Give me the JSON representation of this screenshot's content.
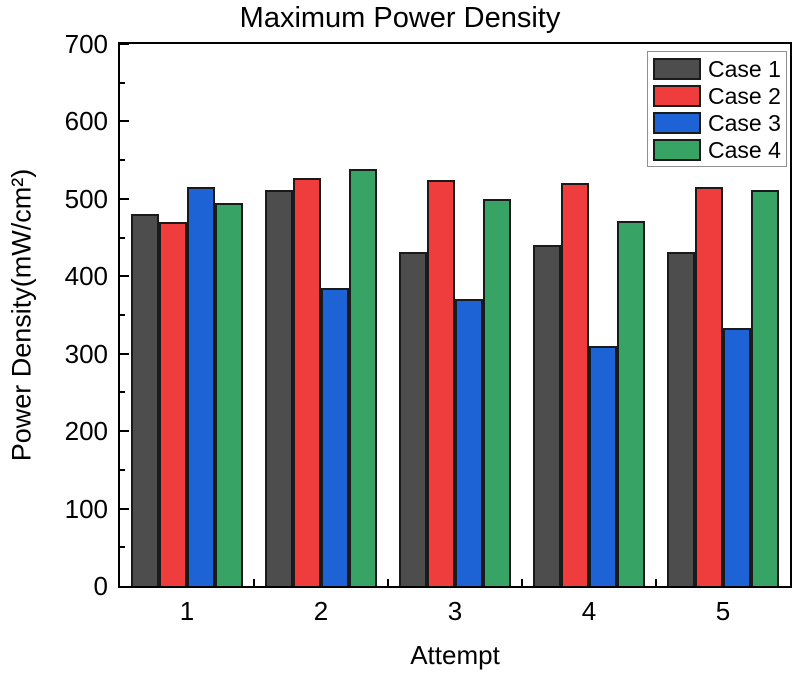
{
  "title": "Maximum Power Density",
  "chart_data": {
    "type": "bar",
    "title": "Maximum Power Density",
    "xlabel": "Attempt",
    "ylabel": "Power Density(mW/cm²)",
    "categories": [
      "1",
      "2",
      "3",
      "4",
      "5"
    ],
    "series": [
      {
        "name": "Case 1",
        "color": "#4D4D4D",
        "values": [
          480,
          511,
          432,
          441,
          432
        ]
      },
      {
        "name": "Case 2",
        "color": "#EF3D3D",
        "values": [
          470,
          527,
          524,
          521,
          515
        ]
      },
      {
        "name": "Case 3",
        "color": "#1D63D6",
        "values": [
          515,
          385,
          371,
          310,
          333
        ]
      },
      {
        "name": "Case 4",
        "color": "#37A466",
        "values": [
          495,
          538,
          500,
          471,
          511
        ]
      }
    ],
    "ylim": [
      0,
      700
    ],
    "ytick_step": 100,
    "yminor_step": 50,
    "grid": false,
    "legend_position": "top-right",
    "bar_outline_color": "#1A1A1A",
    "frame_color": "#000000"
  }
}
